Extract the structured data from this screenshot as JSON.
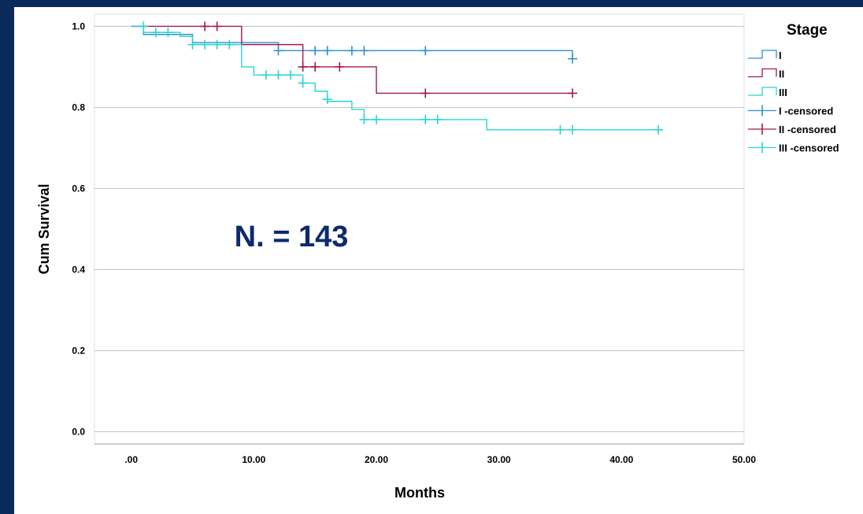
{
  "chart_data": {
    "type": "line",
    "subtype": "kaplan-meier-step",
    "xlabel": "Months",
    "ylabel": "Cum Survival",
    "xlim": [
      -3,
      50
    ],
    "ylim": [
      -0.03,
      1.03
    ],
    "xticks": [
      ".00",
      "10.00",
      "20.00",
      "30.00",
      "40.00",
      "50.00"
    ],
    "xtick_values": [
      0,
      10,
      20,
      30,
      40,
      50
    ],
    "yticks": [
      "0.0",
      "0.2",
      "0.4",
      "0.6",
      "0.8",
      "1.0"
    ],
    "ytick_values": [
      0,
      0.2,
      0.4,
      0.6,
      0.8,
      1.0
    ],
    "grid": "horizontal",
    "legend_placement": "right",
    "annotation": "N. = 143",
    "legend_title": "Stage",
    "series": [
      {
        "name": "I",
        "color": "#2b8fd6",
        "steps": [
          [
            0,
            1.0
          ],
          [
            1,
            0.98
          ],
          [
            5,
            0.96
          ],
          [
            12,
            0.94
          ],
          [
            36,
            0.92
          ]
        ],
        "censored_label": "I -censored",
        "censored": [
          [
            12,
            0.94
          ],
          [
            15,
            0.94
          ],
          [
            16,
            0.94
          ],
          [
            18,
            0.94
          ],
          [
            19,
            0.94
          ],
          [
            24,
            0.94
          ],
          [
            36,
            0.92
          ]
        ]
      },
      {
        "name": "II",
        "color": "#a3194f",
        "steps": [
          [
            0,
            1.0
          ],
          [
            9,
            0.955
          ],
          [
            14,
            0.9
          ],
          [
            20,
            0.835
          ],
          [
            36,
            0.835
          ]
        ],
        "censored_label": "II -censored",
        "censored": [
          [
            6,
            1.0
          ],
          [
            7,
            1.0
          ],
          [
            14,
            0.9
          ],
          [
            15,
            0.9
          ],
          [
            17,
            0.9
          ],
          [
            24,
            0.835
          ],
          [
            36,
            0.835
          ]
        ]
      },
      {
        "name": "III",
        "color": "#26d4d4",
        "steps": [
          [
            0,
            1.0
          ],
          [
            1,
            0.985
          ],
          [
            4,
            0.975
          ],
          [
            5,
            0.955
          ],
          [
            9,
            0.9
          ],
          [
            10,
            0.88
          ],
          [
            14,
            0.86
          ],
          [
            15,
            0.84
          ],
          [
            16,
            0.815
          ],
          [
            18,
            0.795
          ],
          [
            19,
            0.77
          ],
          [
            29,
            0.745
          ],
          [
            43,
            0.745
          ]
        ],
        "censored_label": "III -censored",
        "censored": [
          [
            1,
            1.0
          ],
          [
            2,
            0.985
          ],
          [
            3,
            0.985
          ],
          [
            5,
            0.955
          ],
          [
            6,
            0.955
          ],
          [
            7,
            0.955
          ],
          [
            8,
            0.955
          ],
          [
            11,
            0.88
          ],
          [
            12,
            0.88
          ],
          [
            13,
            0.88
          ],
          [
            14,
            0.86
          ],
          [
            16,
            0.82
          ],
          [
            19,
            0.77
          ],
          [
            20,
            0.77
          ],
          [
            24,
            0.77
          ],
          [
            25,
            0.77
          ],
          [
            35,
            0.745
          ],
          [
            36,
            0.745
          ],
          [
            43,
            0.745
          ]
        ]
      }
    ]
  }
}
